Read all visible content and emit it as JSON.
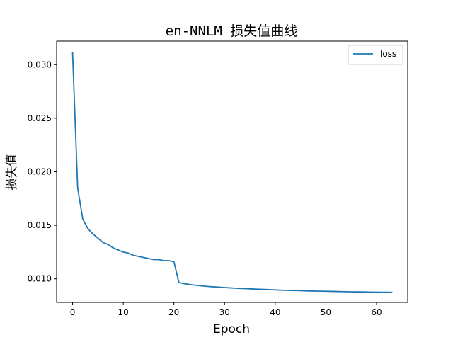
{
  "chart_data": {
    "type": "line",
    "title": "en-NNLM 损失值曲线",
    "xlabel": "Epoch",
    "ylabel": "损失值",
    "xlim": [
      -3.15,
      66.15
    ],
    "ylim": [
      0.0078,
      0.0322
    ],
    "xticks": [
      0,
      10,
      20,
      30,
      40,
      50,
      60
    ],
    "yticks": [
      0.01,
      0.015,
      0.02,
      0.025,
      0.03
    ],
    "ytick_labels": [
      "0.010",
      "0.015",
      "0.020",
      "0.025",
      "0.030"
    ],
    "grid": false,
    "legend_position": "top-right",
    "series": [
      {
        "name": "loss",
        "color": "#1f77b4",
        "x": [
          0,
          1,
          2,
          3,
          4,
          5,
          6,
          7,
          8,
          9,
          10,
          11,
          12,
          13,
          14,
          15,
          16,
          17,
          18,
          19,
          20,
          21,
          22,
          23,
          24,
          25,
          26,
          27,
          28,
          29,
          30,
          31,
          32,
          33,
          34,
          35,
          36,
          37,
          38,
          39,
          40,
          41,
          42,
          43,
          44,
          45,
          46,
          47,
          48,
          49,
          50,
          51,
          52,
          53,
          54,
          55,
          56,
          57,
          58,
          59,
          60,
          61,
          62,
          63
        ],
        "values": [
          0.0311,
          0.0185,
          0.0156,
          0.0147,
          0.0142,
          0.0138,
          0.0134,
          0.0132,
          0.0129,
          0.0127,
          0.0125,
          0.0124,
          0.0122,
          0.0121,
          0.012,
          0.0119,
          0.0118,
          0.0118,
          0.0117,
          0.0117,
          0.0116,
          0.00965,
          0.00955,
          0.00948,
          0.00942,
          0.00937,
          0.00932,
          0.00928,
          0.00925,
          0.00922,
          0.00919,
          0.00916,
          0.00913,
          0.00911,
          0.00909,
          0.00907,
          0.00905,
          0.00903,
          0.00901,
          0.00899,
          0.00897,
          0.00895,
          0.00893,
          0.00892,
          0.00891,
          0.0089,
          0.00888,
          0.00887,
          0.00886,
          0.00885,
          0.00884,
          0.00883,
          0.00882,
          0.00881,
          0.0088,
          0.00879,
          0.00878,
          0.00878,
          0.00877,
          0.00876,
          0.00876,
          0.00875,
          0.00875,
          0.00874
        ]
      }
    ]
  }
}
